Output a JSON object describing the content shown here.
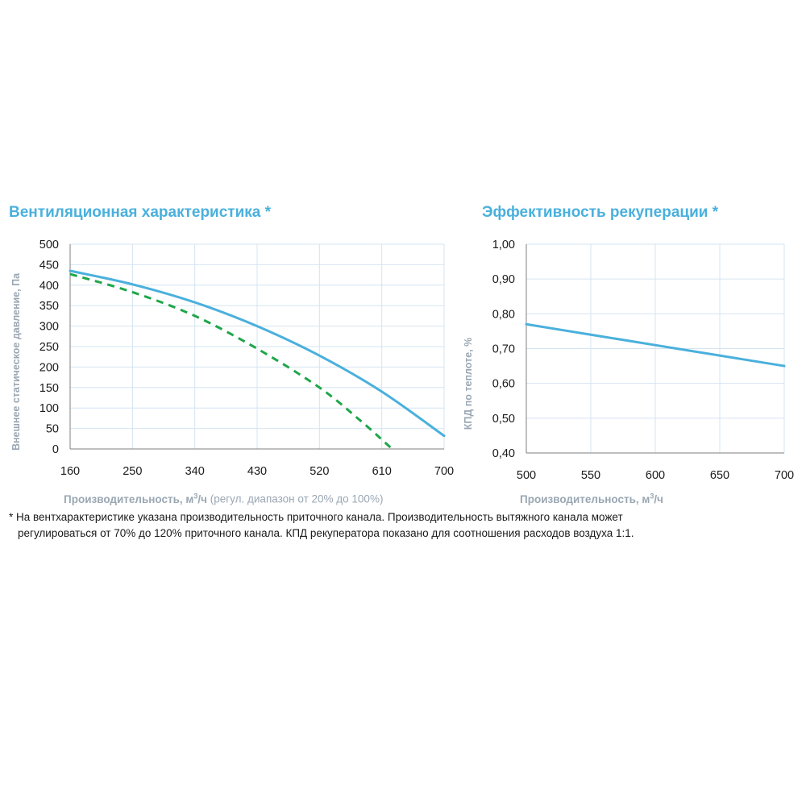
{
  "charts": {
    "left": {
      "title": "Вентиляционная характеристика *",
      "xlabel_main": "Производительность, м",
      "xlabel_sup": "3",
      "xlabel_unit": "/ч",
      "xlabel_extra": " (регул. диапазон от 20% до 100%)",
      "ylabel": "Внешнее статическое давление, Па"
    },
    "right": {
      "title": "Эффективность рекуперации *",
      "xlabel_main": "Производительность, м",
      "xlabel_sup": "3",
      "xlabel_unit": "/ч",
      "ylabel": "КПД по теплоте, %"
    }
  },
  "footnote": {
    "line1": "* На вентхарактеристике указана производительность приточного канала. Производительность вытяжного канала может",
    "line2": "регулироваться от 70% до 120% приточного канала. КПД рекуператора показано для соотношения расходов воздуха 1:1."
  },
  "colors": {
    "blue": "#4ab0dc",
    "green": "#1fa64a",
    "grid": "#d4e4f2",
    "axis": "#7f7f7f"
  },
  "chart_data": [
    {
      "type": "line",
      "title": "Вентиляционная характеристика *",
      "xlabel": "Производительность, м3/ч (регул. диапазон от 20% до 100%)",
      "ylabel": "Внешнее статическое давление, Па",
      "xlim": [
        160,
        700
      ],
      "ylim": [
        0,
        500
      ],
      "xticks": [
        160,
        250,
        340,
        430,
        520,
        610,
        700
      ],
      "yticks": [
        0,
        50,
        100,
        150,
        200,
        250,
        300,
        350,
        400,
        450,
        500
      ],
      "grid": true,
      "series": [
        {
          "style": "solid",
          "color": "#4ab0dc",
          "x": [
            160,
            250,
            340,
            430,
            520,
            610,
            700
          ],
          "y": [
            435,
            402,
            358,
            300,
            228,
            140,
            32
          ]
        },
        {
          "style": "dashed",
          "color": "#1fa64a",
          "x": [
            160,
            250,
            340,
            430,
            520,
            580,
            623
          ],
          "y": [
            427,
            383,
            325,
            245,
            150,
            68,
            3
          ]
        }
      ]
    },
    {
      "type": "line",
      "title": "Эффективность рекуперации *",
      "xlabel": "Производительность, м3/ч",
      "ylabel": "КПД по теплоте, %",
      "xlim": [
        500,
        700
      ],
      "ylim": [
        0.4,
        1.0
      ],
      "xticks": [
        500,
        550,
        600,
        650,
        700
      ],
      "xtick_labels": [
        "500",
        "550",
        "600",
        "650",
        "700"
      ],
      "yticks": [
        0.4,
        0.5,
        0.6,
        0.7,
        0.8,
        0.9,
        1.0
      ],
      "ytick_labels": [
        "0,40",
        "0,50",
        "0,60",
        "0,70",
        "0,80",
        "0,90",
        "1,00"
      ],
      "grid": true,
      "series": [
        {
          "style": "solid",
          "color": "#4ab0dc",
          "x": [
            500,
            550,
            600,
            650,
            700
          ],
          "y": [
            0.77,
            0.74,
            0.71,
            0.68,
            0.65
          ]
        }
      ]
    }
  ]
}
